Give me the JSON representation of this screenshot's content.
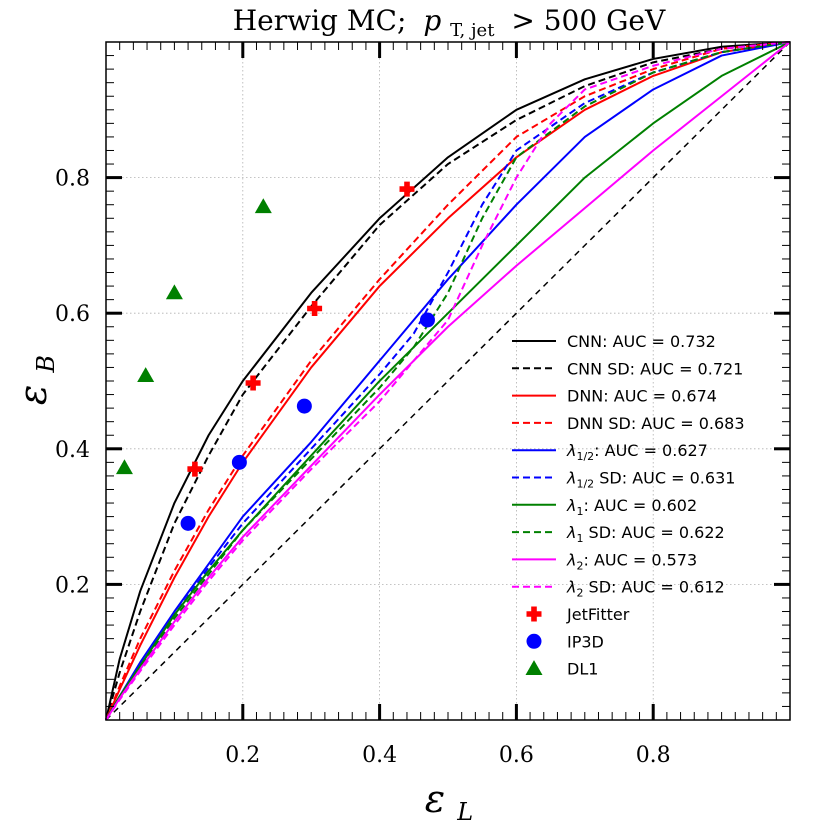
{
  "chart_data": {
    "type": "line",
    "title": "Herwig MC;  p_T, jet > 500 GeV",
    "title_parts": {
      "prefix": "Herwig MC;",
      "var_main": "p",
      "var_sub": "T, jet",
      "cut": "> 500 GeV"
    },
    "xlabel": {
      "main": "ε",
      "sub": "L"
    },
    "ylabel": {
      "main": "ε",
      "sub": "B"
    },
    "xlim": [
      0,
      1
    ],
    "ylim": [
      0,
      1
    ],
    "x_ticks": [
      0.2,
      0.4,
      0.6,
      0.8
    ],
    "y_ticks": [
      0.2,
      0.4,
      0.6,
      0.8
    ],
    "x_tick_labels": [
      "0.2",
      "0.4",
      "0.6",
      "0.8"
    ],
    "y_tick_labels": [
      "0.2",
      "0.4",
      "0.6",
      "0.8"
    ],
    "grid": true,
    "legend_position": "right",
    "reference_diagonal": {
      "color": "#000000",
      "dash": true
    },
    "series": [
      {
        "name": "CNN: AUC = 0.732",
        "name_parts": {
          "label": "CNN",
          "sub": "",
          "rest": ": AUC = 0.732"
        },
        "color": "#000000",
        "dash": false,
        "x": [
          0,
          0.02,
          0.05,
          0.1,
          0.15,
          0.2,
          0.3,
          0.4,
          0.5,
          0.6,
          0.7,
          0.8,
          0.9,
          1.0
        ],
        "y": [
          0,
          0.09,
          0.19,
          0.32,
          0.42,
          0.5,
          0.63,
          0.74,
          0.83,
          0.9,
          0.945,
          0.975,
          0.993,
          1.0
        ]
      },
      {
        "name": "CNN SD: AUC = 0.721",
        "name_parts": {
          "label": "CNN",
          "sub": "",
          "rest": " SD: AUC = 0.721"
        },
        "color": "#000000",
        "dash": true,
        "x": [
          0,
          0.02,
          0.05,
          0.1,
          0.15,
          0.2,
          0.3,
          0.4,
          0.5,
          0.6,
          0.7,
          0.8,
          0.9,
          1.0
        ],
        "y": [
          0,
          0.07,
          0.16,
          0.29,
          0.39,
          0.48,
          0.61,
          0.73,
          0.82,
          0.885,
          0.935,
          0.97,
          0.99,
          1.0
        ]
      },
      {
        "name": "DNN: AUC = 0.674",
        "name_parts": {
          "label": "DNN",
          "sub": "",
          "rest": ": AUC = 0.674"
        },
        "color": "#ff0000",
        "dash": false,
        "x": [
          0,
          0.02,
          0.05,
          0.1,
          0.15,
          0.2,
          0.3,
          0.4,
          0.5,
          0.6,
          0.7,
          0.8,
          0.9,
          1.0
        ],
        "y": [
          0,
          0.045,
          0.11,
          0.21,
          0.3,
          0.38,
          0.52,
          0.64,
          0.74,
          0.83,
          0.9,
          0.95,
          0.985,
          1.0
        ]
      },
      {
        "name": "DNN SD: AUC = 0.683",
        "name_parts": {
          "label": "DNN",
          "sub": "",
          "rest": " SD: AUC = 0.683"
        },
        "color": "#ff0000",
        "dash": true,
        "x": [
          0,
          0.02,
          0.05,
          0.1,
          0.15,
          0.2,
          0.3,
          0.4,
          0.5,
          0.6,
          0.7,
          0.8,
          0.9,
          1.0
        ],
        "y": [
          0,
          0.05,
          0.12,
          0.22,
          0.31,
          0.39,
          0.53,
          0.65,
          0.76,
          0.86,
          0.92,
          0.96,
          0.99,
          1.0
        ]
      },
      {
        "name": "λ1/2: AUC = 0.627",
        "name_parts": {
          "label": "λ",
          "sub": "1/2",
          "rest": ": AUC = 0.627"
        },
        "color": "#0000ff",
        "dash": false,
        "x": [
          0,
          0.02,
          0.05,
          0.1,
          0.15,
          0.2,
          0.3,
          0.4,
          0.5,
          0.6,
          0.7,
          0.8,
          0.9,
          1.0
        ],
        "y": [
          0,
          0.035,
          0.085,
          0.16,
          0.23,
          0.3,
          0.41,
          0.53,
          0.65,
          0.76,
          0.86,
          0.93,
          0.98,
          1.0
        ]
      },
      {
        "name": "λ1/2 SD: AUC = 0.631",
        "name_parts": {
          "label": "λ",
          "sub": "1/2",
          "rest": " SD: AUC = 0.631"
        },
        "color": "#0000ff",
        "dash": true,
        "x": [
          0,
          0.02,
          0.05,
          0.1,
          0.15,
          0.2,
          0.3,
          0.4,
          0.45,
          0.5,
          0.55,
          0.6,
          0.7,
          0.8,
          0.9,
          1.0
        ],
        "y": [
          0,
          0.035,
          0.08,
          0.155,
          0.225,
          0.29,
          0.4,
          0.51,
          0.57,
          0.66,
          0.76,
          0.84,
          0.91,
          0.955,
          0.985,
          1.0
        ]
      },
      {
        "name": "λ1: AUC = 0.602",
        "name_parts": {
          "label": "λ",
          "sub": "1",
          "rest": ": AUC = 0.602"
        },
        "color": "#008000",
        "dash": false,
        "x": [
          0,
          0.02,
          0.05,
          0.1,
          0.15,
          0.2,
          0.3,
          0.4,
          0.5,
          0.6,
          0.7,
          0.8,
          0.9,
          1.0
        ],
        "y": [
          0,
          0.035,
          0.08,
          0.155,
          0.22,
          0.28,
          0.39,
          0.5,
          0.6,
          0.7,
          0.8,
          0.88,
          0.95,
          1.0
        ]
      },
      {
        "name": "λ1 SD: AUC = 0.622",
        "name_parts": {
          "label": "λ",
          "sub": "1",
          "rest": " SD: AUC = 0.622"
        },
        "color": "#008000",
        "dash": true,
        "x": [
          0,
          0.02,
          0.05,
          0.1,
          0.15,
          0.2,
          0.3,
          0.4,
          0.45,
          0.5,
          0.55,
          0.6,
          0.7,
          0.8,
          0.9,
          1.0
        ],
        "y": [
          0,
          0.033,
          0.078,
          0.15,
          0.215,
          0.28,
          0.385,
          0.49,
          0.55,
          0.63,
          0.74,
          0.83,
          0.905,
          0.955,
          0.985,
          1.0
        ]
      },
      {
        "name": "λ2: AUC = 0.573",
        "name_parts": {
          "label": "λ",
          "sub": "2",
          "rest": ": AUC = 0.573"
        },
        "color": "#ff00ff",
        "dash": false,
        "x": [
          0,
          0.02,
          0.05,
          0.1,
          0.15,
          0.2,
          0.3,
          0.4,
          0.5,
          0.6,
          0.7,
          0.8,
          0.9,
          1.0
        ],
        "y": [
          0,
          0.032,
          0.075,
          0.145,
          0.21,
          0.27,
          0.375,
          0.48,
          0.58,
          0.67,
          0.755,
          0.84,
          0.92,
          1.0
        ]
      },
      {
        "name": "λ2 SD: AUC = 0.612",
        "name_parts": {
          "label": "λ",
          "sub": "2",
          "rest": " SD: AUC = 0.612"
        },
        "color": "#ff00ff",
        "dash": true,
        "x": [
          0,
          0.02,
          0.05,
          0.1,
          0.15,
          0.2,
          0.3,
          0.4,
          0.5,
          0.55,
          0.6,
          0.65,
          0.7,
          0.8,
          0.9,
          1.0
        ],
        "y": [
          0,
          0.03,
          0.072,
          0.14,
          0.205,
          0.265,
          0.37,
          0.47,
          0.59,
          0.7,
          0.8,
          0.88,
          0.93,
          0.965,
          0.99,
          1.0
        ]
      }
    ],
    "markers": [
      {
        "name": "JetFitter",
        "shape": "plus",
        "color": "#ff0000",
        "points": [
          [
            0.13,
            0.37
          ],
          [
            0.215,
            0.497
          ],
          [
            0.305,
            0.607
          ],
          [
            0.44,
            0.783
          ]
        ]
      },
      {
        "name": "IP3D",
        "shape": "circle",
        "color": "#0000ff",
        "points": [
          [
            0.12,
            0.29
          ],
          [
            0.195,
            0.38
          ],
          [
            0.29,
            0.463
          ],
          [
            0.47,
            0.59
          ]
        ]
      },
      {
        "name": "DL1",
        "shape": "triangle",
        "color": "#008000",
        "points": [
          [
            0.027,
            0.372
          ],
          [
            0.058,
            0.508
          ],
          [
            0.1,
            0.63
          ],
          [
            0.23,
            0.757
          ]
        ]
      }
    ]
  }
}
